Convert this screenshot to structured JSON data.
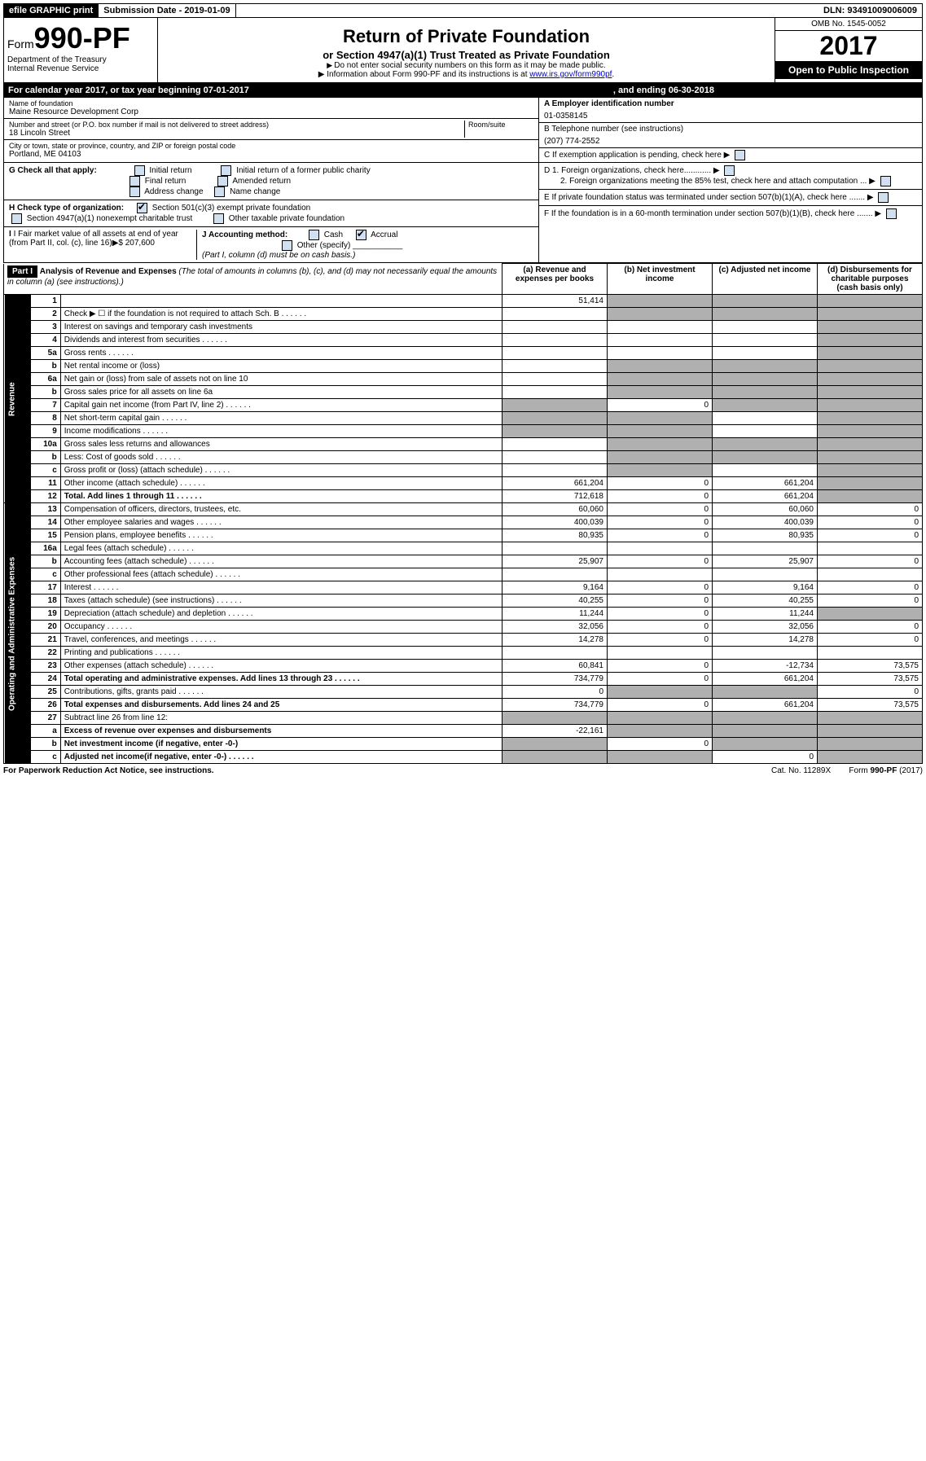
{
  "topbar": {
    "efile": "efile GRAPHIC print",
    "submission": "Submission Date - 2019-01-09",
    "dln": "DLN: 93491009006009"
  },
  "header": {
    "form_prefix": "Form",
    "form_number": "990-PF",
    "dept": "Department of the Treasury",
    "irs": "Internal Revenue Service",
    "title": "Return of Private Foundation",
    "subtitle": "or Section 4947(a)(1) Trust Treated as Private Foundation",
    "instr1": "Do not enter social security numbers on this form as it may be made public.",
    "instr2_pre": "Information about Form 990-PF and its instructions is at ",
    "instr2_link": "www.irs.gov/form990pf",
    "omb": "OMB No. 1545-0052",
    "year": "2017",
    "open": "Open to Public Inspection"
  },
  "calyear": {
    "text1": "For calendar year 2017, or tax year beginning 07-01-2017",
    "text2": ", and ending 06-30-2018"
  },
  "ident": {
    "name_label": "Name of foundation",
    "name": "Maine Resource Development Corp",
    "addr_label": "Number and street (or P.O. box number if mail is not delivered to street address)",
    "room_label": "Room/suite",
    "addr": "18 Lincoln Street",
    "city_label": "City or town, state or province, country, and ZIP or foreign postal code",
    "city": "Portland, ME  04103",
    "a_label": "A Employer identification number",
    "a_val": "01-0358145",
    "b_label": "B Telephone number (see instructions)",
    "b_val": "(207) 774-2552",
    "c_label": "C If exemption application is pending, check here",
    "d1": "D 1. Foreign organizations, check here............",
    "d2": "2. Foreign organizations meeting the 85% test, check here and attach computation ...",
    "e": "E  If private foundation status was terminated under section 507(b)(1)(A), check here .......",
    "f": "F  If the foundation is in a 60-month termination under section 507(b)(1)(B), check here ......."
  },
  "checks": {
    "g_label": "G Check all that apply:",
    "g1": "Initial return",
    "g2": "Initial return of a former public charity",
    "g3": "Final return",
    "g4": "Amended return",
    "g5": "Address change",
    "g6": "Name change",
    "h_label": "H Check type of organization:",
    "h1": "Section 501(c)(3) exempt private foundation",
    "h2": "Section 4947(a)(1) nonexempt charitable trust",
    "h3": "Other taxable private foundation",
    "i_label": "I Fair market value of all assets at end of year (from Part II, col. (c), line 16)",
    "i_val": "$  207,600",
    "j_label": "J Accounting method:",
    "j1": "Cash",
    "j2": "Accrual",
    "j3": "Other (specify)",
    "j_note": "(Part I, column (d) must be on cash basis.)"
  },
  "part1": {
    "label": "Part I",
    "title": "Analysis of Revenue and Expenses",
    "title_note": "(The total of amounts in columns (b), (c), and (d) may not necessarily equal the amounts in column (a) (see instructions).)",
    "col_a": "(a)   Revenue and expenses per books",
    "col_b": "(b)  Net investment income",
    "col_c": "(c)  Adjusted net income",
    "col_d": "(d)  Disbursements for charitable purposes (cash basis only)"
  },
  "sections": {
    "revenue": "Revenue",
    "expenses": "Operating and Administrative Expenses"
  },
  "rows": [
    {
      "n": "1",
      "d": "",
      "a": "51,414",
      "b": "",
      "c": "",
      "ga": false,
      "gb": true,
      "gc": true,
      "gd": true
    },
    {
      "n": "2",
      "d": "Check ▶ ☐ if the foundation is not required to attach Sch. B",
      "dots": true,
      "ga": false,
      "gb": true,
      "gc": true,
      "gd": true
    },
    {
      "n": "3",
      "d": "Interest on savings and temporary cash investments",
      "ga": false,
      "gb": false,
      "gc": false,
      "gd": true
    },
    {
      "n": "4",
      "d": "Dividends and interest from securities",
      "dots": true,
      "ga": false,
      "gb": false,
      "gc": false,
      "gd": true
    },
    {
      "n": "5a",
      "d": "Gross rents",
      "dots": true,
      "ga": false,
      "gb": false,
      "gc": false,
      "gd": true
    },
    {
      "n": "b",
      "d": "Net rental income or (loss)",
      "ga": false,
      "gb": true,
      "gc": true,
      "gd": true
    },
    {
      "n": "6a",
      "d": "Net gain or (loss) from sale of assets not on line 10",
      "ga": false,
      "gb": true,
      "gc": true,
      "gd": true
    },
    {
      "n": "b",
      "d": "Gross sales price for all assets on line 6a",
      "ga": false,
      "gb": true,
      "gc": true,
      "gd": true
    },
    {
      "n": "7",
      "d": "Capital gain net income (from Part IV, line 2)",
      "dots": true,
      "ga": true,
      "gb": false,
      "b": "0",
      "gc": true,
      "gd": true
    },
    {
      "n": "8",
      "d": "Net short-term capital gain",
      "dots": true,
      "ga": true,
      "gb": true,
      "gc": false,
      "gd": true
    },
    {
      "n": "9",
      "d": "Income modifications",
      "dots": true,
      "ga": true,
      "gb": true,
      "gc": false,
      "gd": true
    },
    {
      "n": "10a",
      "d": "Gross sales less returns and allowances",
      "ga": false,
      "gb": true,
      "gc": true,
      "gd": true
    },
    {
      "n": "b",
      "d": "Less: Cost of goods sold",
      "dots": true,
      "ga": false,
      "gb": true,
      "gc": true,
      "gd": true
    },
    {
      "n": "c",
      "d": "Gross profit or (loss) (attach schedule)",
      "dots": true,
      "ga": false,
      "gb": true,
      "gc": false,
      "gd": true
    },
    {
      "n": "11",
      "d": "Other income (attach schedule)",
      "dots": true,
      "a": "661,204",
      "b": "0",
      "c": "661,204",
      "gd": true
    },
    {
      "n": "12",
      "d": "Total. Add lines 1 through 11",
      "dots": true,
      "bold": true,
      "a": "712,618",
      "b": "0",
      "c": "661,204",
      "gd": true
    },
    {
      "n": "13",
      "d": "Compensation of officers, directors, trustees, etc.",
      "a": "60,060",
      "b": "0",
      "c": "60,060",
      "dd": "0"
    },
    {
      "n": "14",
      "d": "Other employee salaries and wages",
      "dots": true,
      "a": "400,039",
      "b": "0",
      "c": "400,039",
      "dd": "0"
    },
    {
      "n": "15",
      "d": "Pension plans, employee benefits",
      "dots": true,
      "a": "80,935",
      "b": "0",
      "c": "80,935",
      "dd": "0"
    },
    {
      "n": "16a",
      "d": "Legal fees (attach schedule)",
      "dots": true
    },
    {
      "n": "b",
      "d": "Accounting fees (attach schedule)",
      "dots": true,
      "a": "25,907",
      "b": "0",
      "c": "25,907",
      "dd": "0"
    },
    {
      "n": "c",
      "d": "Other professional fees (attach schedule)",
      "dots": true
    },
    {
      "n": "17",
      "d": "Interest",
      "dots": true,
      "a": "9,164",
      "b": "0",
      "c": "9,164",
      "dd": "0"
    },
    {
      "n": "18",
      "d": "Taxes (attach schedule) (see instructions)",
      "dots": true,
      "a": "40,255",
      "b": "0",
      "c": "40,255",
      "dd": "0"
    },
    {
      "n": "19",
      "d": "Depreciation (attach schedule) and depletion",
      "dots": true,
      "a": "11,244",
      "b": "0",
      "c": "11,244",
      "gd": true
    },
    {
      "n": "20",
      "d": "Occupancy",
      "dots": true,
      "a": "32,056",
      "b": "0",
      "c": "32,056",
      "dd": "0"
    },
    {
      "n": "21",
      "d": "Travel, conferences, and meetings",
      "dots": true,
      "a": "14,278",
      "b": "0",
      "c": "14,278",
      "dd": "0"
    },
    {
      "n": "22",
      "d": "Printing and publications",
      "dots": true
    },
    {
      "n": "23",
      "d": "Other expenses (attach schedule)",
      "dots": true,
      "a": "60,841",
      "b": "0",
      "c": "-12,734",
      "dd": "73,575"
    },
    {
      "n": "24",
      "d": "Total operating and administrative expenses. Add lines 13 through 23",
      "dots": true,
      "bold": true,
      "a": "734,779",
      "b": "0",
      "c": "661,204",
      "dd": "73,575"
    },
    {
      "n": "25",
      "d": "Contributions, gifts, grants paid",
      "dots": true,
      "a": "0",
      "gb": true,
      "gc": true,
      "dd": "0"
    },
    {
      "n": "26",
      "d": "Total expenses and disbursements. Add lines 24 and 25",
      "bold": true,
      "a": "734,779",
      "b": "0",
      "c": "661,204",
      "dd": "73,575"
    },
    {
      "n": "27",
      "d": "Subtract line 26 from line 12:",
      "bold": false,
      "ga": true,
      "gb": true,
      "gc": true,
      "gd": true
    },
    {
      "n": "a",
      "d": "Excess of revenue over expenses and disbursements",
      "bold": true,
      "a": "-22,161",
      "gb": true,
      "gc": true,
      "gd": true
    },
    {
      "n": "b",
      "d": "Net investment income (if negative, enter -0-)",
      "bold": true,
      "ga": true,
      "b": "0",
      "gc": true,
      "gd": true
    },
    {
      "n": "c",
      "d": "Adjusted net income(if negative, enter -0-)",
      "bold": true,
      "dots": true,
      "ga": true,
      "gb": true,
      "c": "0",
      "gd": true
    }
  ],
  "footer": {
    "left": "For Paperwork Reduction Act Notice, see instructions.",
    "mid": "Cat. No. 11289X",
    "right": "Form 990-PF (2017)"
  }
}
